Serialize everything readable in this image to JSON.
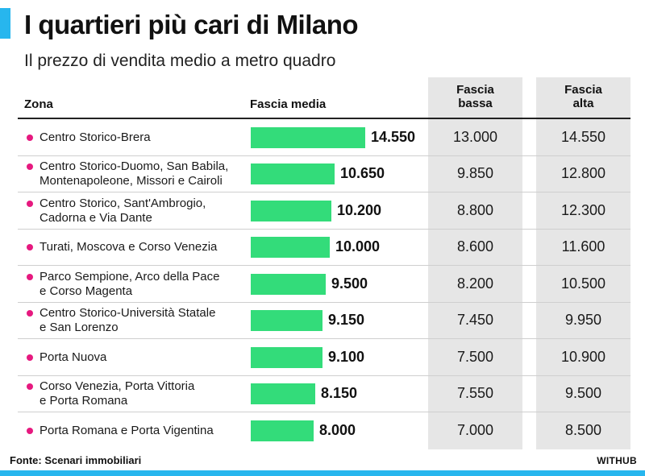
{
  "title": "I quartieri più cari di Milano",
  "subtitle": "Il prezzo di vendita medio a metro quadro",
  "headers": {
    "zone": "Zona",
    "media": "Fascia media",
    "low": [
      "Fascia",
      "bassa"
    ],
    "high": [
      "Fascia",
      "alta"
    ]
  },
  "source": "Fonte: Scenari immobiliari",
  "brand": "WITHUB",
  "colors": {
    "accent": "#27b6ee",
    "bar": "#33dc7a",
    "bullet": "#e6197f",
    "column_bg": "#e6e6e6"
  },
  "chart_data": {
    "type": "bar",
    "title": "I quartieri più cari di Milano",
    "subtitle": "Il prezzo di vendita medio a metro quadro",
    "xlabel": "",
    "ylabel": "Fascia media",
    "ylim": [
      0,
      14550
    ],
    "rows": [
      {
        "zone": [
          "Centro Storico-Brera"
        ],
        "media": 14550,
        "media_label": "14.550",
        "low": "13.000",
        "high": "14.550"
      },
      {
        "zone": [
          "Centro Storico-Duomo, San Babila,",
          "Montenapoleone, Missori e Cairoli"
        ],
        "media": 10650,
        "media_label": "10.650",
        "low": "9.850",
        "high": "12.800"
      },
      {
        "zone": [
          "Centro Storico, Sant'Ambrogio,",
          "Cadorna e Via Dante"
        ],
        "media": 10200,
        "media_label": "10.200",
        "low": "8.800",
        "high": "12.300"
      },
      {
        "zone": [
          "Turati, Moscova e Corso Venezia"
        ],
        "media": 10000,
        "media_label": "10.000",
        "low": "8.600",
        "high": "11.600"
      },
      {
        "zone": [
          "Parco Sempione, Arco della Pace",
          "e Corso Magenta"
        ],
        "media": 9500,
        "media_label": "9.500",
        "low": "8.200",
        "high": "10.500"
      },
      {
        "zone": [
          "Centro Storico-Università Statale",
          "e San Lorenzo"
        ],
        "media": 9150,
        "media_label": "9.150",
        "low": "7.450",
        "high": "9.950"
      },
      {
        "zone": [
          "Porta Nuova"
        ],
        "media": 9100,
        "media_label": "9.100",
        "low": "7.500",
        "high": "10.900"
      },
      {
        "zone": [
          "Corso Venezia, Porta Vittoria",
          "e Porta Romana"
        ],
        "media": 8150,
        "media_label": "8.150",
        "low": "7.550",
        "high": "9.500"
      },
      {
        "zone": [
          "Porta Romana e Porta Vigentina"
        ],
        "media": 8000,
        "media_label": "8.000",
        "low": "7.000",
        "high": "8.500"
      }
    ]
  }
}
